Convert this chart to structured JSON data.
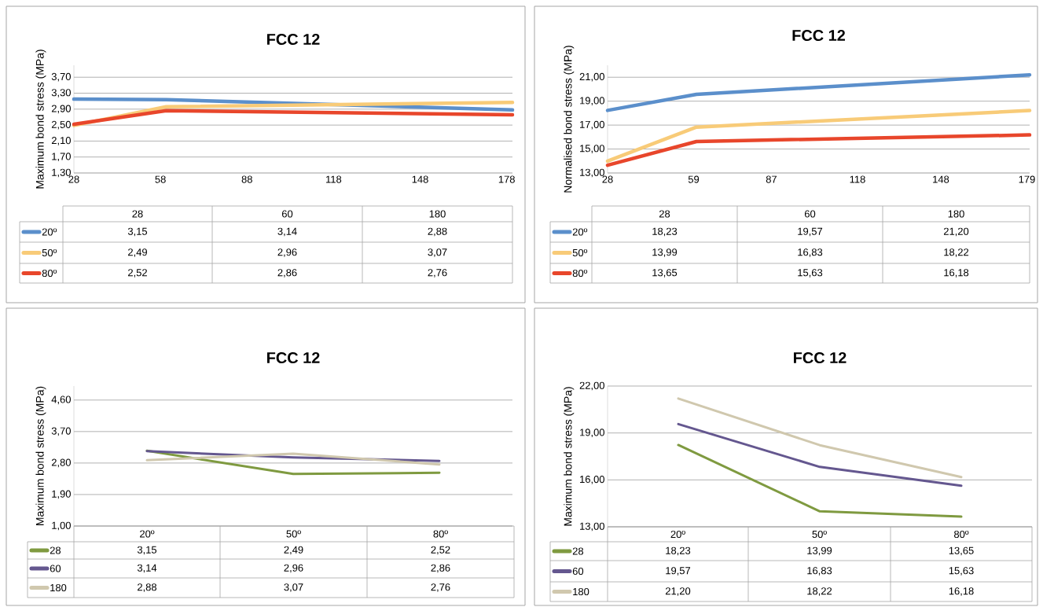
{
  "chart_data": [
    {
      "type": "line",
      "title": "FCC 12",
      "ylabel": "Maximum bond stress (MPa)",
      "annotations": [
        "28",
        "60",
        "180",
        "3,15",
        "3,14",
        "2,88",
        "2,49",
        "2,96",
        "3,07",
        "2,52",
        "2,86",
        "2,76"
      ],
      "x": [
        28,
        60,
        180
      ],
      "xlim": [
        28,
        180
      ],
      "xticks": [
        28,
        58,
        88,
        118,
        148,
        178
      ],
      "ylim": [
        1.3,
        4.0
      ],
      "yticks": [
        {
          "value": 1.3,
          "label": "1,30"
        },
        {
          "value": 1.7,
          "label": "1,70"
        },
        {
          "value": 2.1,
          "label": "2,10"
        },
        {
          "value": 2.5,
          "label": "2,50"
        },
        {
          "value": 2.9,
          "label": "2,90"
        },
        {
          "value": 3.3,
          "label": "3,30"
        },
        {
          "value": 3.7,
          "label": "3,70"
        }
      ],
      "grid": "y",
      "legend": "bottom",
      "series": [
        {
          "name": "20º",
          "color": "#5b8fcb",
          "values": [
            3.15,
            3.14,
            2.88
          ]
        },
        {
          "name": "50º",
          "color": "#f8cb78",
          "values": [
            2.49,
            2.96,
            3.07
          ]
        },
        {
          "name": "80º",
          "color": "#e8462b",
          "values": [
            2.52,
            2.86,
            2.76
          ]
        }
      ]
    },
    {
      "type": "line",
      "title": "FCC 12",
      "ylabel": "Normalised bond stress (MPa)",
      "annotations": [
        "28",
        "60",
        "180",
        "18,23",
        "19,57",
        "21,20",
        "13,99",
        "16,83",
        "18,22",
        "13,65",
        "15,63",
        "16,18"
      ],
      "x": [
        28,
        60,
        180
      ],
      "xlim": [
        28,
        180
      ],
      "xticks": [
        28,
        59,
        87,
        118,
        148,
        179
      ],
      "ylim": [
        13,
        22
      ],
      "yticks": [
        {
          "value": 13,
          "label": "13,00"
        },
        {
          "value": 15,
          "label": "15,00"
        },
        {
          "value": 17,
          "label": "17,00"
        },
        {
          "value": 19,
          "label": "19,00"
        },
        {
          "value": 21,
          "label": "21,00"
        }
      ],
      "grid": "y",
      "legend": "bottom",
      "series": [
        {
          "name": "20º",
          "color": "#5b8fcb",
          "values": [
            18.23,
            19.57,
            21.2
          ]
        },
        {
          "name": "50º",
          "color": "#f8cb78",
          "values": [
            13.99,
            16.83,
            18.22
          ]
        },
        {
          "name": "80º",
          "color": "#e8462b",
          "values": [
            13.65,
            15.63,
            16.18
          ]
        }
      ]
    },
    {
      "type": "line",
      "title": "FCC 12",
      "ylabel": "Maximum bond stress (MPa)",
      "categories": [
        "20º",
        "50º",
        "80º"
      ],
      "ylim": [
        1.0,
        5.0
      ],
      "yticks": [
        {
          "value": 1.0,
          "label": "1,00"
        },
        {
          "value": 1.9,
          "label": "1,90"
        },
        {
          "value": 2.8,
          "label": "2,80"
        },
        {
          "value": 3.7,
          "label": "3,70"
        },
        {
          "value": 4.6,
          "label": "4,60"
        }
      ],
      "grid": "y",
      "legend": "bottom",
      "series": [
        {
          "name": "28",
          "color": "#7f9a40",
          "values": [
            3.15,
            2.49,
            2.52
          ],
          "value_labels": [
            "3,15",
            "2,49",
            "2,52"
          ]
        },
        {
          "name": "60",
          "color": "#64578f",
          "values": [
            3.14,
            2.96,
            2.86
          ],
          "value_labels": [
            "3,14",
            "2,96",
            "2,86"
          ]
        },
        {
          "name": "180",
          "color": "#d0c8ae",
          "values": [
            2.88,
            3.07,
            2.76
          ],
          "value_labels": [
            "2,88",
            "3,07",
            "2,76"
          ]
        }
      ]
    },
    {
      "type": "line",
      "title": "FCC 12",
      "ylabel": "Maximum bond stress (MPa)",
      "categories": [
        "20º",
        "50º",
        "80º"
      ],
      "ylim": [
        13,
        22
      ],
      "yticks": [
        {
          "value": 13,
          "label": "13,00"
        },
        {
          "value": 16,
          "label": "16,00"
        },
        {
          "value": 19,
          "label": "19,00"
        },
        {
          "value": 22,
          "label": "22,00"
        }
      ],
      "grid": "y",
      "legend": "bottom",
      "series": [
        {
          "name": "28",
          "color": "#7f9a40",
          "values": [
            18.23,
            13.99,
            13.65
          ],
          "value_labels": [
            "18,23",
            "13,99",
            "13,65"
          ]
        },
        {
          "name": "60",
          "color": "#64578f",
          "values": [
            19.57,
            16.83,
            15.63
          ],
          "value_labels": [
            "19,57",
            "16,83",
            "15,63"
          ]
        },
        {
          "name": "180",
          "color": "#d0c8ae",
          "values": [
            21.2,
            18.22,
            16.18
          ],
          "value_labels": [
            "21,20",
            "18,22",
            "16,18"
          ]
        }
      ]
    }
  ]
}
